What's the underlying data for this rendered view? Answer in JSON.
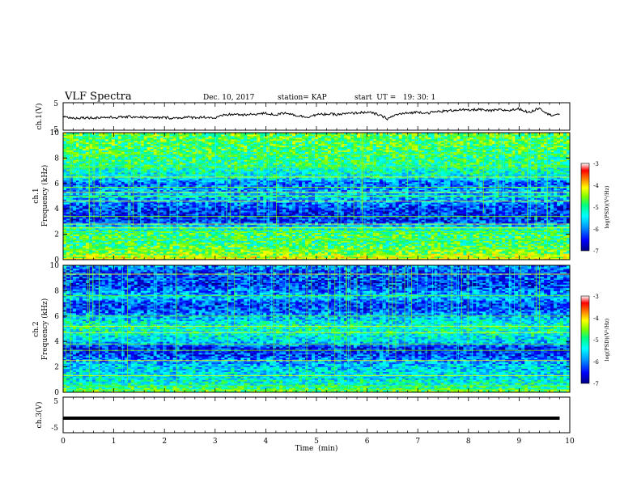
{
  "header": {
    "title": "VLF Spectra",
    "date": "Dec. 10, 2017",
    "station": "station= KAP",
    "start": "start  UT =   19: 30: 1"
  },
  "colors": {
    "spectrogram_scale": [
      "#000080",
      "#0000ff",
      "#00a0ff",
      "#00ffff",
      "#00ff80",
      "#80ff00",
      "#ffff00",
      "#ff8000",
      "#ff0000",
      "#ffffff"
    ]
  },
  "chart_data": [
    {
      "type": "line",
      "name": "ch1_voltage",
      "ylabel": "ch.1(V)",
      "ylim": [
        -5,
        5
      ],
      "yticks": [
        "5",
        "-5"
      ],
      "x": [
        0,
        0.2,
        0.4,
        0.6,
        0.8,
        1.0,
        1.2,
        1.4,
        1.6,
        1.8,
        2.0,
        2.2,
        2.4,
        2.6,
        2.8,
        3.0,
        3.2,
        3.4,
        3.6,
        3.8,
        4.0,
        4.2,
        4.4,
        4.6,
        4.8,
        5.0,
        5.2,
        5.4,
        5.6,
        5.8,
        6.0,
        6.2,
        6.4,
        6.6,
        6.8,
        7.0,
        7.2,
        7.4,
        7.6,
        7.8,
        8.0,
        8.2,
        8.4,
        8.6,
        8.8,
        9.0,
        9.2,
        9.4,
        9.6,
        9.8
      ],
      "y": [
        0.0,
        -0.6,
        -0.4,
        -0.5,
        -0.3,
        -0.4,
        -0.2,
        -0.1,
        -0.3,
        -0.5,
        -0.4,
        -0.6,
        -0.3,
        -0.4,
        -0.2,
        -0.6,
        0.6,
        0.8,
        0.5,
        0.9,
        1.1,
        0.6,
        1.4,
        0.4,
        -0.2,
        0.6,
        0.9,
        0.7,
        1.0,
        1.3,
        1.6,
        0.8,
        -0.8,
        0.8,
        1.2,
        1.6,
        1.3,
        1.8,
        2.0,
        2.5,
        2.2,
        2.6,
        2.0,
        2.4,
        2.2,
        2.8,
        1.4,
        3.2,
        0.5,
        0.9
      ]
    },
    {
      "type": "heatmap",
      "name": "ch1_spectrogram",
      "ylabel": "Frequency (kHz)",
      "channel_label": "ch.1",
      "ylim": [
        0,
        10
      ],
      "yticks": [
        "0",
        "2",
        "4",
        "6",
        "8",
        "10"
      ],
      "colorbar": {
        "label": "log(PSD)(V²/Hz)",
        "ticks": [
          "-3",
          "-4",
          "-5",
          "-6",
          "-7"
        ],
        "range": [
          -7,
          -3
        ]
      },
      "freq_profile_khz": [
        0.0,
        0.5,
        1.0,
        1.5,
        2.0,
        2.5,
        3.0,
        3.5,
        4.0,
        4.5,
        5.0,
        5.5,
        6.0,
        6.5,
        7.0,
        7.5,
        8.0,
        8.5,
        9.0,
        9.5,
        10.0
      ],
      "log_psd": [
        -4.2,
        -4.6,
        -4.8,
        -5.0,
        -4.9,
        -5.3,
        -6.3,
        -6.4,
        -6.3,
        -6.0,
        -5.6,
        -5.8,
        -6.2,
        -5.4,
        -5.3,
        -5.0,
        -5.0,
        -4.9,
        -4.8,
        -4.8,
        -4.7
      ],
      "tone_lines_khz": [
        0.1,
        0.3,
        0.8,
        1.6,
        2.2,
        2.5,
        2.8,
        3.4,
        4.6,
        5.0,
        5.3,
        5.7,
        6.5,
        7.3,
        8.3
      ]
    },
    {
      "type": "heatmap",
      "name": "ch2_spectrogram",
      "ylabel": "Frequency (kHz)",
      "channel_label": "ch.2",
      "ylim": [
        0,
        10
      ],
      "yticks": [
        "0",
        "2",
        "4",
        "6",
        "8",
        "10"
      ],
      "colorbar": {
        "label": "log(PSD)(V²/Hz)",
        "ticks": [
          "-3",
          "-4",
          "-5",
          "-6",
          "-7"
        ],
        "range": [
          -7,
          -3
        ]
      },
      "freq_profile_khz": [
        0.0,
        0.5,
        1.0,
        1.5,
        2.0,
        2.5,
        3.0,
        3.5,
        4.0,
        4.5,
        5.0,
        5.5,
        6.0,
        6.5,
        7.0,
        7.5,
        8.0,
        8.5,
        9.0,
        9.5,
        10.0
      ],
      "log_psd": [
        -4.6,
        -5.2,
        -5.4,
        -5.5,
        -5.6,
        -5.9,
        -6.3,
        -6.4,
        -5.6,
        -5.4,
        -5.2,
        -5.4,
        -5.8,
        -6.2,
        -6.3,
        -5.6,
        -6.0,
        -6.4,
        -6.2,
        -6.3,
        -5.8
      ],
      "tone_lines_khz": [
        0.2,
        0.5,
        1.3,
        2.5,
        3.3,
        3.8,
        4.7,
        5.2,
        6.0,
        7.6,
        9.3
      ]
    },
    {
      "type": "line",
      "name": "ch3_voltage",
      "ylabel": "ch.3(V)",
      "ylim": [
        -5,
        5
      ],
      "yticks": [
        "5",
        "-5"
      ],
      "x": [
        0,
        9.8
      ],
      "y": [
        -0.9,
        -0.9
      ]
    }
  ],
  "time_axis": {
    "label": "Time  (min)",
    "xlim": [
      0,
      10
    ],
    "ticks": [
      "0",
      "1",
      "2",
      "3",
      "4",
      "5",
      "6",
      "7",
      "8",
      "9",
      "10"
    ]
  }
}
